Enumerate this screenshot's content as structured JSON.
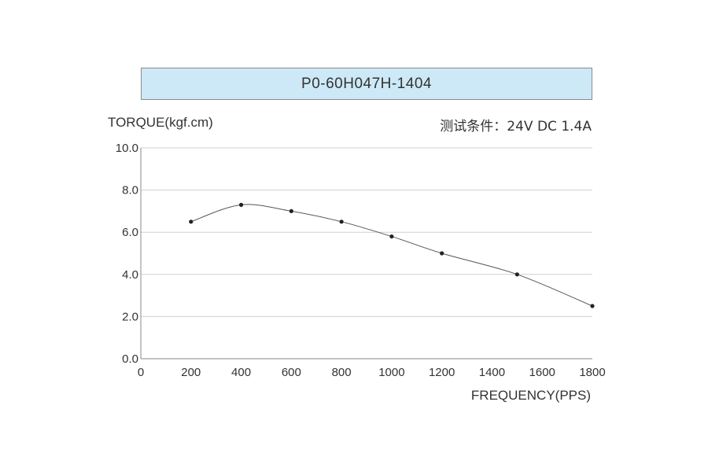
{
  "chart_data": {
    "type": "line",
    "title": "P0-60H047H-1404",
    "subtitle": "测试条件：24V DC  1.4A",
    "xlabel": "FREQUENCY(PPS)",
    "ylabel": "TORQUE(kgf.cm)",
    "xlim": [
      0,
      1800
    ],
    "ylim": [
      0,
      10
    ],
    "x_ticks": [
      "0",
      "200",
      "400",
      "600",
      "800",
      "1000",
      "1200",
      "1400",
      "1600",
      "1800"
    ],
    "y_ticks": [
      "0.0",
      "2.0",
      "4.0",
      "6.0",
      "8.0",
      "10.0"
    ],
    "grid": "horizontal",
    "series": [
      {
        "x": [
          200,
          400,
          600,
          800,
          1000,
          1200,
          1500,
          1800
        ],
        "y": [
          6.5,
          7.3,
          7.0,
          6.5,
          5.8,
          5.0,
          4.0,
          2.5
        ]
      }
    ],
    "colors": {
      "line": "#555555",
      "point": "#222222",
      "grid": "#d0d0d0",
      "title_bg": "#cde9f7"
    }
  }
}
